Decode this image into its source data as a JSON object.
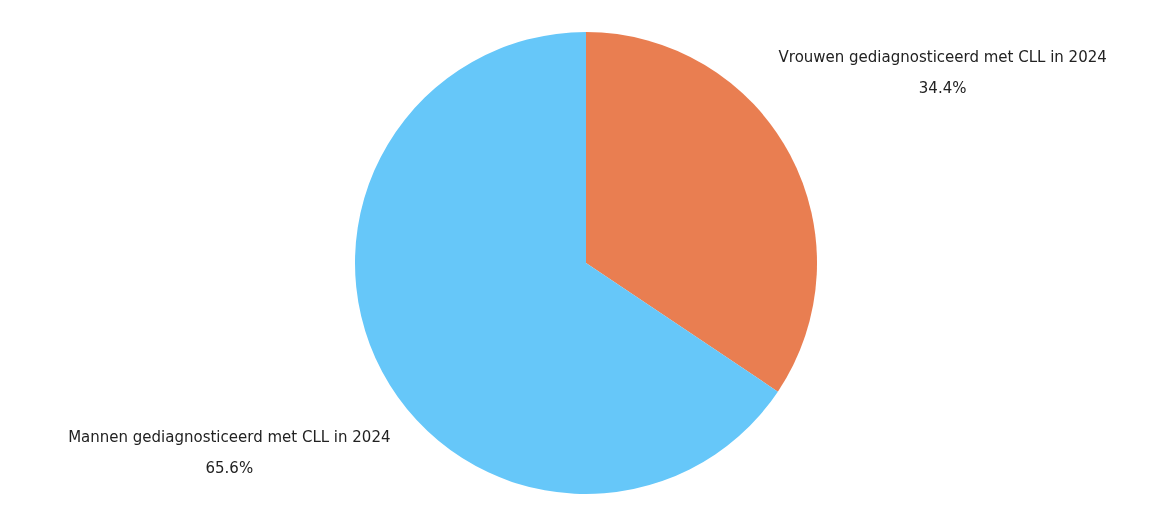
{
  "chart_data": {
    "type": "pie",
    "categories": [
      "Vrouwen gediagnosticeerd met CLL in 2024",
      "Mannen gediagnosticeerd met CLL in 2024"
    ],
    "values": [
      34.4,
      65.6
    ],
    "value_labels": [
      "34.4%",
      "65.6%"
    ],
    "colors": [
      "#e97e51",
      "#66c7f9"
    ]
  }
}
